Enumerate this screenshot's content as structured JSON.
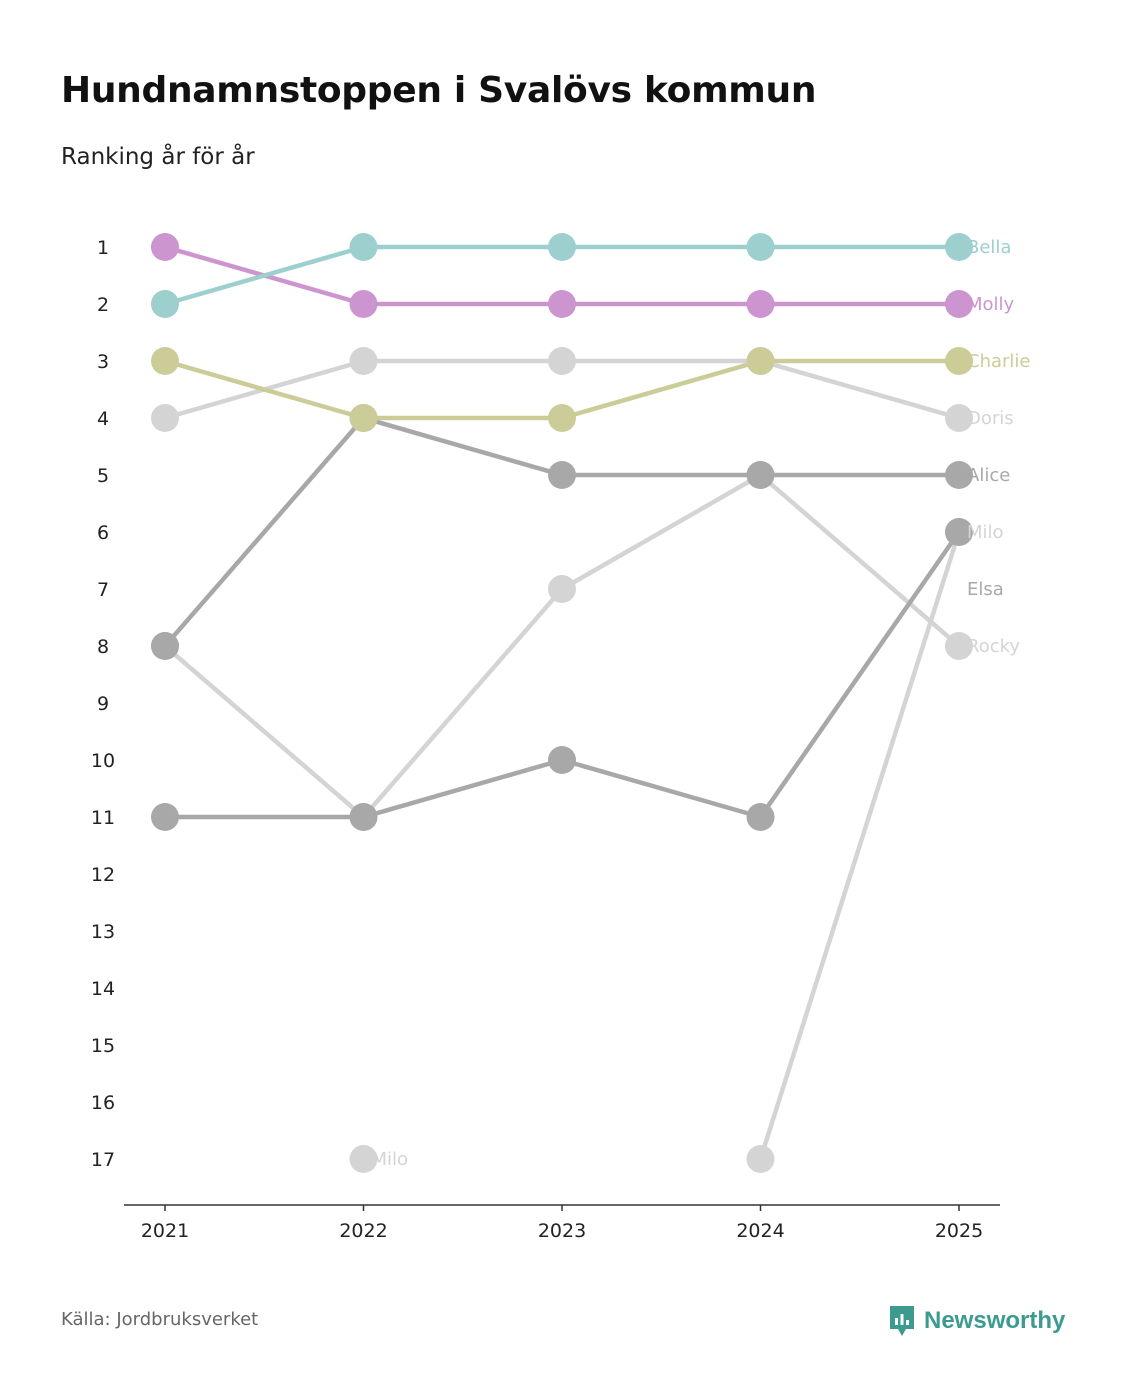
{
  "title": "Hundnamnstoppen i Svalövs kommun",
  "subtitle": "Ranking år för år",
  "source": "Källa: Jordbruksverket",
  "brand": "Newsworthy",
  "colors": {
    "Bella": "#9ccfcd",
    "Molly": "#cc95cf",
    "Charlie": "#cccc98",
    "Doris": "#d4d4d4",
    "Alice": "#a8a8a8",
    "Milo": "#d4d4d4",
    "Elsa": "#a8a8a8",
    "Rocky": "#d4d4d4",
    "brand": "#3d9a91",
    "axis": "#333333"
  },
  "chart_data": {
    "type": "line",
    "subtype": "bump",
    "title": "Hundnamnstoppen i Svalövs kommun",
    "subtitle": "Ranking år för år",
    "x": [
      "2021",
      "2022",
      "2023",
      "2024",
      "2025"
    ],
    "y_ticks": [
      "1",
      "2",
      "3",
      "4",
      "5",
      "6",
      "7",
      "8",
      "9",
      "10",
      "11",
      "12",
      "13",
      "14",
      "15",
      "16",
      "17"
    ],
    "ylim": [
      1,
      17
    ],
    "y_reversed": true,
    "series": [
      {
        "name": "Doris",
        "values": [
          4,
          3,
          3,
          3,
          4
        ]
      },
      {
        "name": "Rocky",
        "values": [
          8,
          11,
          7,
          5,
          8
        ]
      },
      {
        "name": "Milo",
        "values": [
          null,
          17,
          null,
          17,
          6
        ]
      },
      {
        "name": "Alice",
        "values": [
          8,
          4,
          5,
          5,
          5
        ]
      },
      {
        "name": "Elsa",
        "values": [
          11,
          11,
          10,
          11,
          6
        ]
      },
      {
        "name": "Charlie",
        "values": [
          3,
          4,
          4,
          3,
          3
        ]
      },
      {
        "name": "Molly",
        "values": [
          1,
          2,
          2,
          2,
          2
        ]
      },
      {
        "name": "Bella",
        "values": [
          2,
          1,
          1,
          1,
          1
        ]
      }
    ],
    "end_labels": [
      {
        "name": "Bella",
        "rank": 1
      },
      {
        "name": "Molly",
        "rank": 2
      },
      {
        "name": "Charlie",
        "rank": 3
      },
      {
        "name": "Doris",
        "rank": 4
      },
      {
        "name": "Alice",
        "rank": 5
      },
      {
        "name": "Milo",
        "rank": 6
      },
      {
        "name": "Elsa",
        "rank": 7
      },
      {
        "name": "Rocky",
        "rank": 8
      }
    ],
    "annotations": [
      {
        "text": "Milo",
        "year": "2022",
        "rank": 17
      }
    ]
  }
}
